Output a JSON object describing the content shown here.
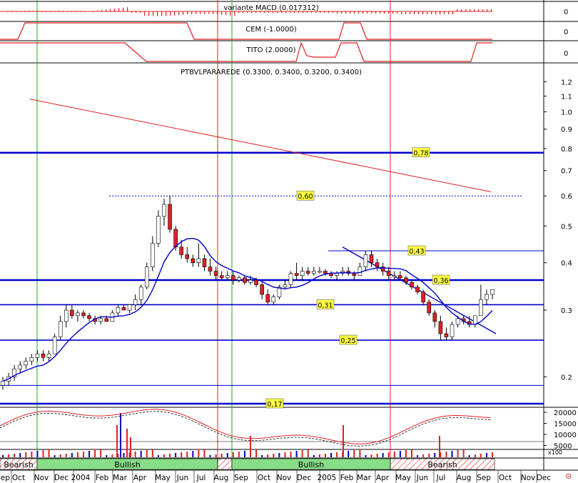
{
  "panels": {
    "macd": {
      "title": "variante MACD (0.017312)",
      "ticks": [
        "0"
      ]
    },
    "cem": {
      "title": "CEM (-1.0000)",
      "ticks": [
        "0"
      ]
    },
    "tito": {
      "title": "TITO (2.0000)",
      "ticks": [
        "0"
      ]
    },
    "price": {
      "title": "PTBVLPARAREDE (0.3300, 0.3400, 0.3200, 0.3400)"
    },
    "volume": {
      "ticks": [
        "20000",
        "15000",
        "10000",
        "5000"
      ],
      "multiplier": "x100"
    }
  },
  "chart_data": {
    "type": "candlestick",
    "title": "PTBVLPARAREDE (0.3300, 0.3400, 0.3200, 0.3400)",
    "scale": "log",
    "ylim": [
      0.17,
      1.25
    ],
    "y_ticks": [
      "1.2",
      "1.1",
      "1.0",
      "0.9",
      "0.8",
      "0.7",
      "0.6",
      "0.5",
      "0.4",
      "0.3",
      "0.2"
    ],
    "x_ticks": [
      "Sep",
      "Oct",
      "Nov",
      "Dec",
      "2004",
      "Feb",
      "Mar",
      "Apr",
      "May",
      "Jun",
      "Jul",
      "Aug",
      "Sep",
      "Oct",
      "Nov",
      "Dec",
      "2005",
      "Feb",
      "Mar",
      "Apr",
      "May",
      "Jun",
      "Jul",
      "Aug",
      "Sep",
      "Oct",
      "Nov",
      "Dec"
    ],
    "levels": [
      {
        "label": "0,78",
        "value": 0.78,
        "style": "thick"
      },
      {
        "label": "0,60",
        "value": 0.6,
        "style": "dotted"
      },
      {
        "label": "0,43",
        "value": 0.43,
        "style": "thin"
      },
      {
        "label": "0,36",
        "value": 0.36,
        "style": "thick"
      },
      {
        "label": "0,31",
        "value": 0.31,
        "style": "medium"
      },
      {
        "label": "0,25",
        "value": 0.25,
        "style": "medium"
      },
      {
        "label": "",
        "value": 0.19,
        "style": "thin"
      },
      {
        "label": "0,17",
        "value": 0.17,
        "style": "thick"
      }
    ],
    "trend_phases": [
      {
        "label": "Bearish",
        "start": 0,
        "end": 52
      },
      {
        "label": "Bullish",
        "start": 52,
        "end": 305
      },
      {
        "label": "",
        "start": 305,
        "end": 325
      },
      {
        "label": "Bullish",
        "start": 325,
        "end": 547
      },
      {
        "label": "Bearish",
        "start": 547,
        "end": 693
      }
    ],
    "vertical_markers": [
      {
        "x": 52,
        "color": "#22aa22"
      },
      {
        "x": 325,
        "color": "#22aa22"
      },
      {
        "x": 305,
        "color": "#dd2222"
      },
      {
        "x": 547,
        "color": "#dd2222"
      }
    ],
    "candles": [
      [
        0.19,
        0.2,
        0.185,
        0.195
      ],
      [
        0.195,
        0.205,
        0.19,
        0.2
      ],
      [
        0.2,
        0.215,
        0.195,
        0.21
      ],
      [
        0.21,
        0.22,
        0.205,
        0.215
      ],
      [
        0.215,
        0.225,
        0.21,
        0.22
      ],
      [
        0.22,
        0.23,
        0.215,
        0.225
      ],
      [
        0.225,
        0.235,
        0.22,
        0.23
      ],
      [
        0.23,
        0.235,
        0.22,
        0.225
      ],
      [
        0.225,
        0.235,
        0.22,
        0.23
      ],
      [
        0.23,
        0.26,
        0.23,
        0.255
      ],
      [
        0.255,
        0.29,
        0.25,
        0.28
      ],
      [
        0.28,
        0.31,
        0.27,
        0.3
      ],
      [
        0.3,
        0.31,
        0.285,
        0.29
      ],
      [
        0.29,
        0.3,
        0.28,
        0.295
      ],
      [
        0.295,
        0.3,
        0.285,
        0.29
      ],
      [
        0.29,
        0.295,
        0.28,
        0.285
      ],
      [
        0.285,
        0.29,
        0.275,
        0.28
      ],
      [
        0.28,
        0.29,
        0.275,
        0.285
      ],
      [
        0.285,
        0.29,
        0.28,
        0.28
      ],
      [
        0.28,
        0.3,
        0.28,
        0.295
      ],
      [
        0.295,
        0.31,
        0.29,
        0.305
      ],
      [
        0.305,
        0.31,
        0.3,
        0.3
      ],
      [
        0.3,
        0.31,
        0.295,
        0.31
      ],
      [
        0.31,
        0.33,
        0.3,
        0.32
      ],
      [
        0.32,
        0.35,
        0.31,
        0.345
      ],
      [
        0.345,
        0.4,
        0.34,
        0.39
      ],
      [
        0.39,
        0.47,
        0.38,
        0.45
      ],
      [
        0.45,
        0.55,
        0.44,
        0.53
      ],
      [
        0.53,
        0.59,
        0.5,
        0.57
      ],
      [
        0.57,
        0.6,
        0.48,
        0.49
      ],
      [
        0.49,
        0.5,
        0.43,
        0.44
      ],
      [
        0.44,
        0.46,
        0.41,
        0.42
      ],
      [
        0.42,
        0.44,
        0.4,
        0.41
      ],
      [
        0.41,
        0.42,
        0.39,
        0.4
      ],
      [
        0.4,
        0.45,
        0.39,
        0.41
      ],
      [
        0.41,
        0.42,
        0.38,
        0.39
      ],
      [
        0.39,
        0.41,
        0.37,
        0.38
      ],
      [
        0.38,
        0.39,
        0.36,
        0.37
      ],
      [
        0.37,
        0.38,
        0.36,
        0.365
      ],
      [
        0.365,
        0.38,
        0.36,
        0.37
      ],
      [
        0.37,
        0.38,
        0.35,
        0.36
      ],
      [
        0.36,
        0.37,
        0.355,
        0.365
      ],
      [
        0.365,
        0.37,
        0.35,
        0.355
      ],
      [
        0.355,
        0.37,
        0.35,
        0.36
      ],
      [
        0.36,
        0.365,
        0.345,
        0.35
      ],
      [
        0.35,
        0.355,
        0.32,
        0.33
      ],
      [
        0.33,
        0.34,
        0.31,
        0.315
      ],
      [
        0.315,
        0.33,
        0.31,
        0.325
      ],
      [
        0.325,
        0.35,
        0.32,
        0.345
      ],
      [
        0.345,
        0.36,
        0.34,
        0.35
      ],
      [
        0.35,
        0.38,
        0.345,
        0.375
      ],
      [
        0.375,
        0.4,
        0.36,
        0.37
      ],
      [
        0.37,
        0.39,
        0.36,
        0.38
      ],
      [
        0.38,
        0.39,
        0.37,
        0.375
      ],
      [
        0.375,
        0.39,
        0.37,
        0.38
      ],
      [
        0.38,
        0.39,
        0.375,
        0.38
      ],
      [
        0.38,
        0.385,
        0.37,
        0.375
      ],
      [
        0.375,
        0.38,
        0.365,
        0.37
      ],
      [
        0.37,
        0.38,
        0.36,
        0.375
      ],
      [
        0.375,
        0.39,
        0.37,
        0.38
      ],
      [
        0.38,
        0.39,
        0.37,
        0.375
      ],
      [
        0.375,
        0.38,
        0.36,
        0.37
      ],
      [
        0.37,
        0.4,
        0.37,
        0.39
      ],
      [
        0.39,
        0.43,
        0.38,
        0.42
      ],
      [
        0.42,
        0.43,
        0.39,
        0.4
      ],
      [
        0.4,
        0.41,
        0.38,
        0.39
      ],
      [
        0.39,
        0.4,
        0.37,
        0.38
      ],
      [
        0.38,
        0.39,
        0.36,
        0.37
      ],
      [
        0.37,
        0.38,
        0.36,
        0.37
      ],
      [
        0.37,
        0.38,
        0.36,
        0.365
      ],
      [
        0.365,
        0.37,
        0.35,
        0.355
      ],
      [
        0.355,
        0.36,
        0.34,
        0.345
      ],
      [
        0.345,
        0.35,
        0.33,
        0.335
      ],
      [
        0.335,
        0.34,
        0.31,
        0.315
      ],
      [
        0.315,
        0.32,
        0.29,
        0.295
      ],
      [
        0.295,
        0.3,
        0.27,
        0.28
      ],
      [
        0.28,
        0.29,
        0.25,
        0.26
      ],
      [
        0.26,
        0.27,
        0.25,
        0.255
      ],
      [
        0.255,
        0.28,
        0.25,
        0.275
      ],
      [
        0.275,
        0.29,
        0.27,
        0.285
      ],
      [
        0.285,
        0.29,
        0.275,
        0.28
      ],
      [
        0.28,
        0.29,
        0.27,
        0.275
      ],
      [
        0.275,
        0.29,
        0.27,
        0.29
      ],
      [
        0.29,
        0.35,
        0.29,
        0.32
      ],
      [
        0.32,
        0.34,
        0.31,
        0.33
      ],
      [
        0.33,
        0.34,
        0.32,
        0.34
      ]
    ]
  }
}
